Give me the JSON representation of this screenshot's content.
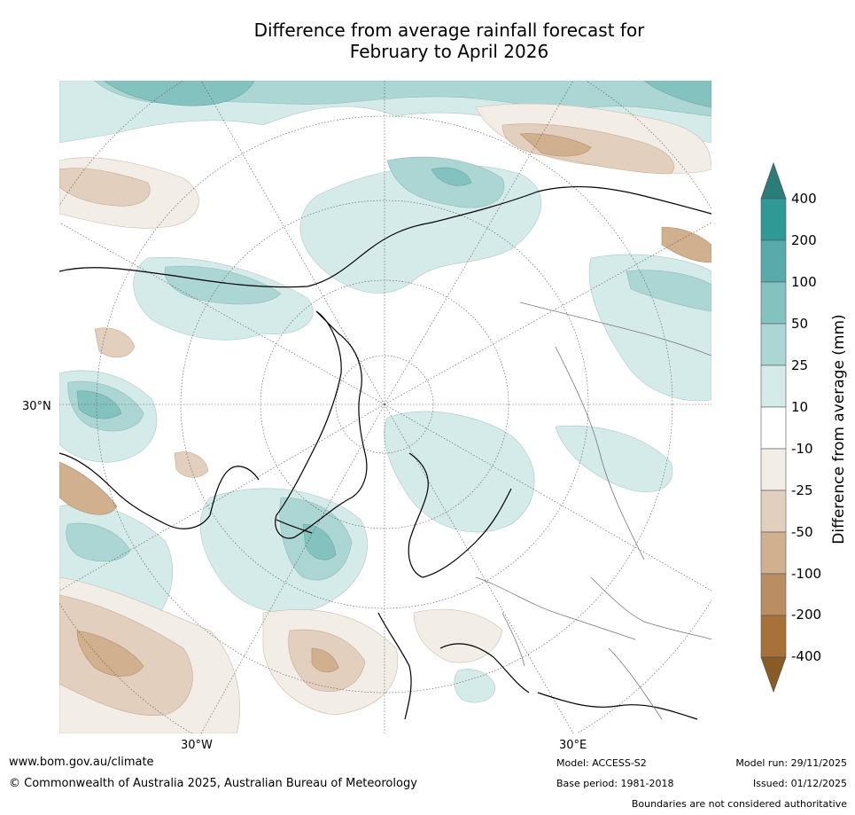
{
  "title_line1": "Difference from average rainfall forecast for",
  "title_line2": "February to April 2026",
  "map": {
    "latitude_labels": [
      "30°N"
    ],
    "longitude_labels": [
      "30°W",
      "30°E"
    ]
  },
  "colorbar": {
    "label": "Difference from average (mm)",
    "ticks": [
      "400",
      "200",
      "100",
      "50",
      "25",
      "10",
      "-10",
      "-25",
      "-50",
      "-100",
      "-200",
      "-400"
    ],
    "colors_top_to_bottom": [
      "#2a7e7a",
      "#2f9995",
      "#58abaa",
      "#84c2c0",
      "#acd6d4",
      "#d4ebea",
      "#ffffff",
      "#f2ede7",
      "#e3cfbd",
      "#d0b08f",
      "#bb8d62",
      "#a8713a",
      "#8b5a25"
    ]
  },
  "footer": {
    "website": "www.bom.gov.au/climate",
    "copyright": "© Commonwealth of Australia 2025, Australian Bureau of Meteorology",
    "model": "Model: ACCESS-S2",
    "base_period": "Base period: 1981-2018",
    "model_run": "Model run: 29/11/2025",
    "issued": "Issued: 01/12/2025",
    "disclaimer": "Boundaries are not considered authoritative"
  }
}
